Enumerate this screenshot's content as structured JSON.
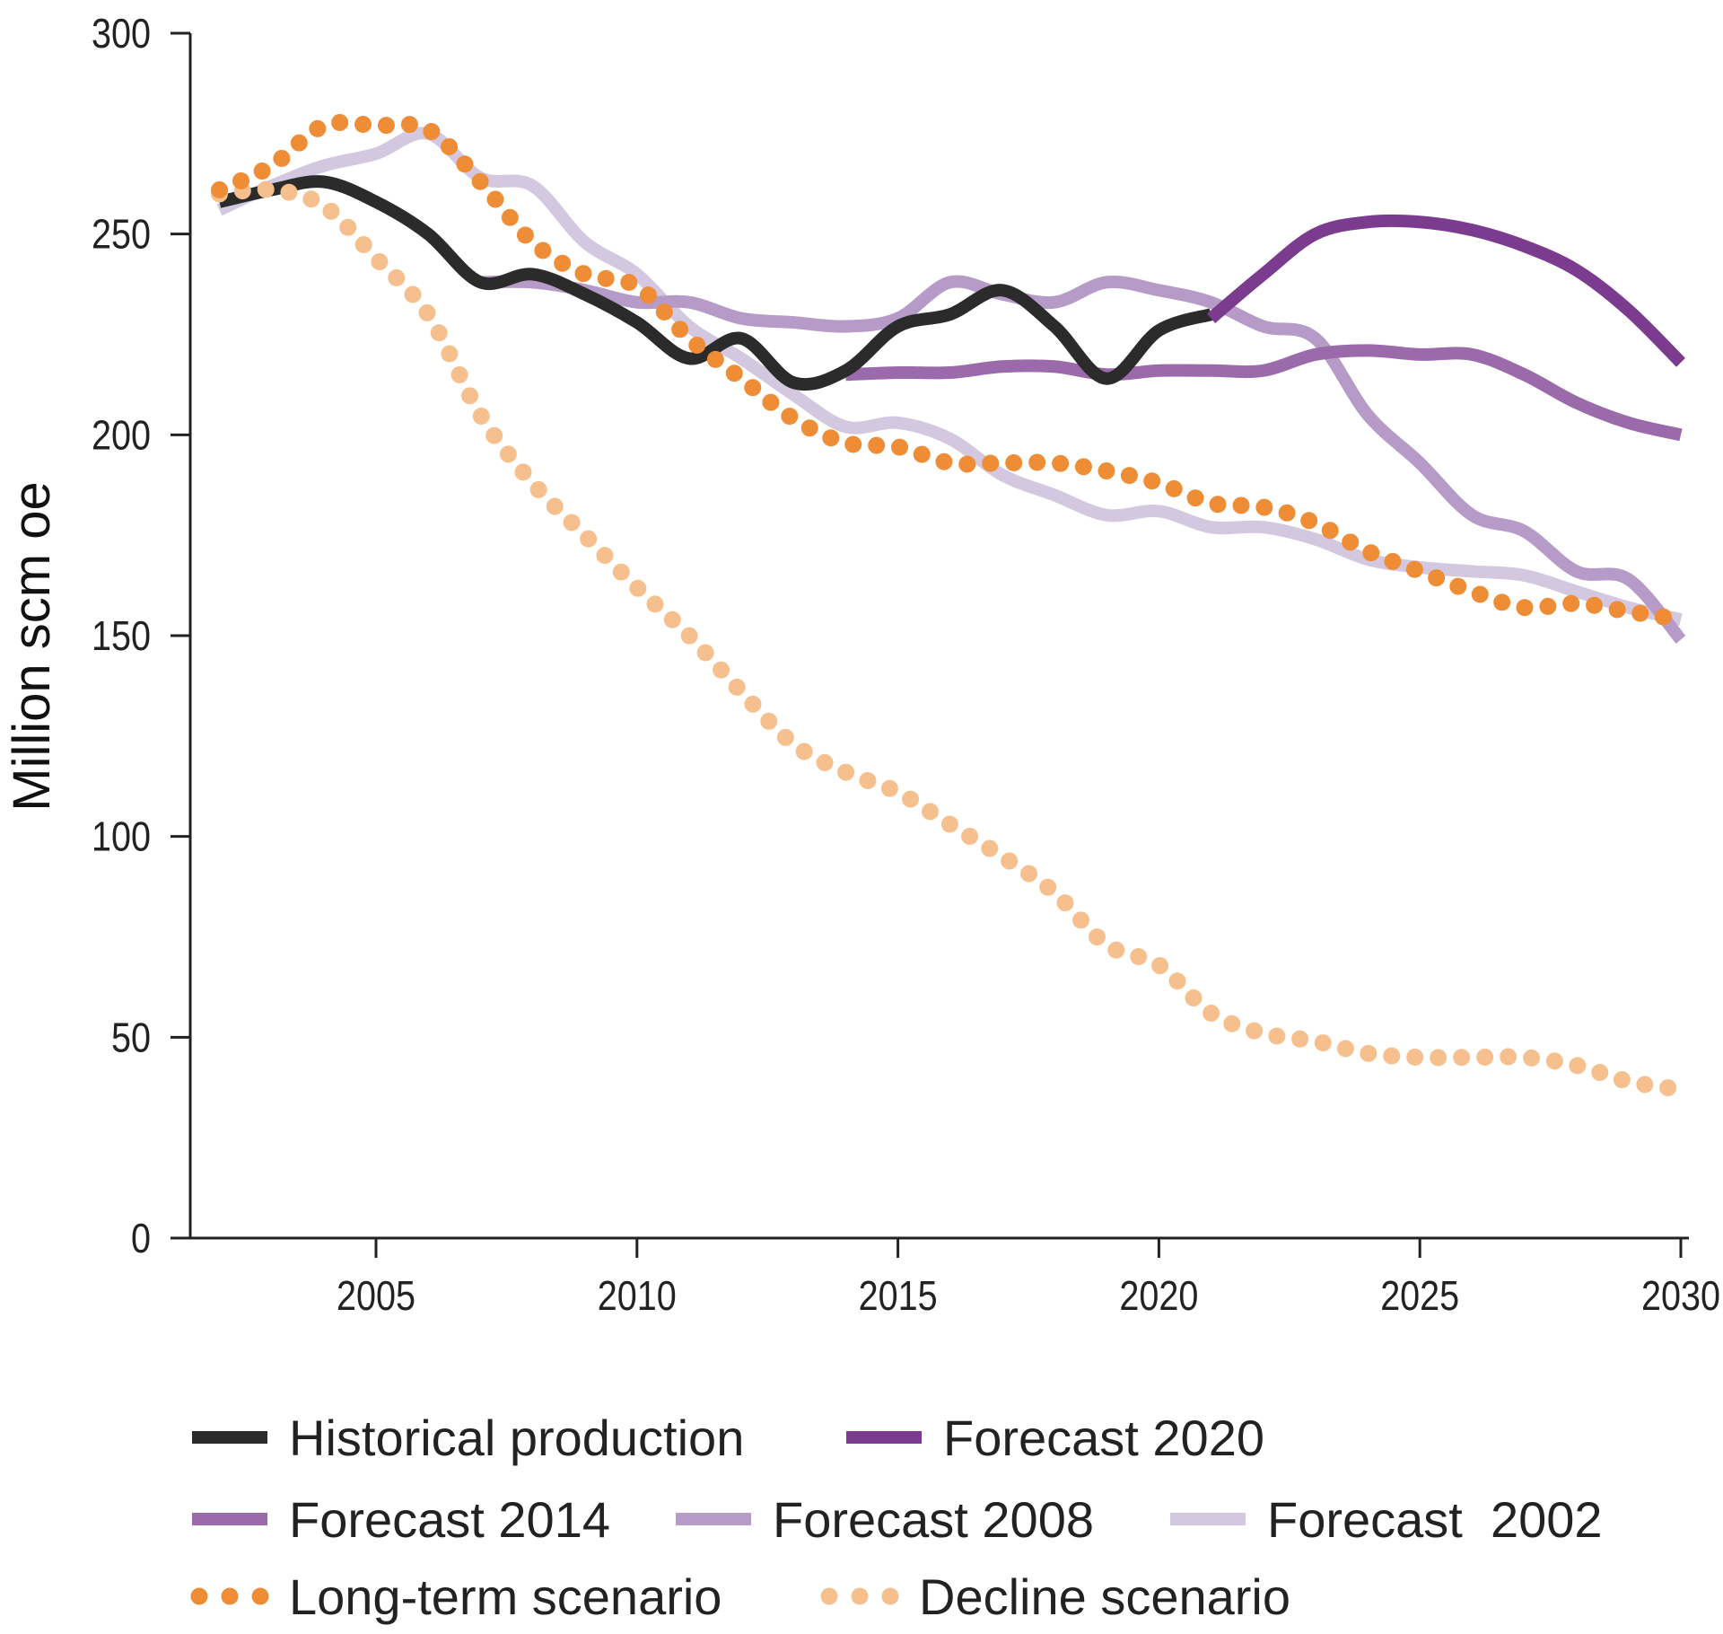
{
  "chart_data": {
    "type": "line",
    "title": "",
    "xlabel": "",
    "ylabel": "Million scm oe",
    "xlim": [
      2001.45,
      2030.2
    ],
    "ylim": [
      0,
      300
    ],
    "x_ticks": [
      2005,
      2010,
      2015,
      2020,
      2025,
      2030
    ],
    "y_ticks": [
      0,
      50,
      100,
      150,
      200,
      250,
      300
    ],
    "grid": false,
    "legend_position": "bottom",
    "series": [
      {
        "name": "Historical production",
        "style": "solid",
        "color": "#2b2b2b",
        "x_start": 2002,
        "values": [
          258,
          261,
          263,
          258,
          250,
          238,
          240,
          235,
          228,
          219,
          224,
          213,
          216,
          227,
          230,
          236,
          227,
          214,
          226,
          230
        ]
      },
      {
        "name": "Forecast 2020",
        "style": "solid",
        "color": "#7b3b8f",
        "x_start": 2021,
        "values": [
          229,
          240,
          250,
          253,
          253,
          251,
          247,
          241,
          231,
          218
        ]
      },
      {
        "name": "Forecast 2014",
        "style": "solid",
        "color": "#9b6aaa",
        "x_start": 2014,
        "values": [
          215,
          215.5,
          215.5,
          217,
          217,
          215,
          216,
          216,
          216,
          220,
          221,
          220,
          220,
          215,
          208,
          203,
          200
        ]
      },
      {
        "name": "Forecast 2008",
        "style": "solid",
        "color": "#b69ac7",
        "x_start": 2007,
        "values": [
          238,
          238,
          236,
          233,
          233,
          229,
          228,
          227,
          229,
          238,
          235,
          233,
          238,
          236,
          233,
          227,
          224,
          205,
          193,
          180,
          176,
          166,
          164,
          149
        ]
      },
      {
        "name": "Forecast  2002",
        "style": "solid",
        "color": "#d3c8e0",
        "x_start": 2002,
        "values": [
          256,
          262,
          267,
          270,
          275,
          264,
          262,
          248,
          240,
          227,
          219,
          210,
          202,
          203,
          199,
          190,
          185,
          180,
          181,
          177,
          177,
          174,
          169,
          167,
          166,
          165,
          161,
          157,
          154
        ]
      },
      {
        "name": "Long-term scenario",
        "style": "dotted",
        "color": "#ee8d36",
        "x_start": 2002,
        "values": [
          261,
          267,
          277,
          277,
          276,
          263,
          248,
          240,
          237,
          224,
          214,
          204,
          198,
          197,
          193,
          193,
          193,
          191,
          188,
          183,
          182,
          178,
          171,
          166,
          161,
          157,
          158,
          156,
          154
        ]
      },
      {
        "name": "Decline scenario",
        "style": "dotted",
        "color": "#f6c08e",
        "x_start": 2002,
        "values": [
          260,
          261,
          257,
          244,
          230,
          205,
          188,
          175,
          162,
          150,
          136,
          123,
          116,
          111,
          103,
          95,
          86,
          73,
          68,
          56,
          51,
          49,
          46,
          45,
          45,
          45,
          43,
          39,
          37
        ]
      }
    ]
  }
}
